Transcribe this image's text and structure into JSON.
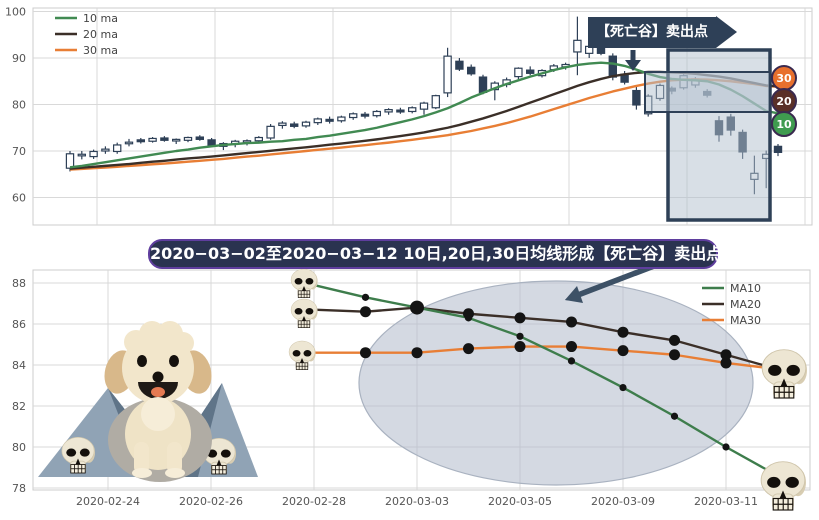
{
  "banner": {
    "text": "2020−03−02至2020−03−12 10日,20日,30日均线形成【死亡谷】卖出点"
  },
  "style": {
    "candle_color": "#2e4057",
    "ma10_color": "#418a52",
    "ma20_color": "#3b2f28",
    "ma30_color": "#e87e35",
    "grid_color": "#d9d9d9",
    "tick_color": "#555555",
    "box_fill": "rgba(178,191,205,0.5)",
    "box_stroke": "#2e4057",
    "ellipse_fill": "rgba(176,186,202,0.55)",
    "ellipse_stroke": "#a9b2c0",
    "arrow_color": "#3d5166",
    "badge_border": "#3a2a4f",
    "badge_colors": {
      "30": "#e8702d",
      "20": "#5a3028",
      "10": "#3f9b4f"
    },
    "mountain_light": "#90a3b5",
    "mountain_dark": "#5f7488",
    "skull_bone": "#ede6d3",
    "dog_cream": "#f2e6cb",
    "dog_tan": "#d8b88a"
  },
  "chart_data": [
    {
      "type": "candlestick",
      "title": "",
      "legend": [
        {
          "label": "10 ma",
          "color": "#418a52"
        },
        {
          "label": "20 ma",
          "color": "#3b2f28"
        },
        {
          "label": "30 ma",
          "color": "#e87e35"
        }
      ],
      "y_ticks": [
        100,
        90,
        80,
        70,
        60
      ],
      "ylim": [
        54,
        101
      ],
      "annotation": "【死亡谷】卖出点",
      "badges": [
        {
          "label": "30",
          "color": "#e8702d"
        },
        {
          "label": "20",
          "color": "#5a3028"
        },
        {
          "label": "10",
          "color": "#3f9b4f"
        }
      ],
      "ohlc": [
        [
          66.3,
          70.0,
          65.6,
          69.4
        ],
        [
          69.0,
          70.0,
          68.2,
          69.3
        ],
        [
          68.8,
          70.3,
          68.3,
          69.9
        ],
        [
          70.0,
          71.0,
          69.4,
          70.4
        ],
        [
          69.9,
          71.8,
          69.4,
          71.3
        ],
        [
          71.6,
          72.6,
          71.0,
          71.9
        ],
        [
          72.4,
          72.8,
          71.6,
          72.0
        ],
        [
          72.1,
          73.0,
          71.8,
          72.7
        ],
        [
          72.8,
          73.2,
          72.0,
          72.3
        ],
        [
          72.2,
          72.7,
          71.5,
          72.5
        ],
        [
          72.3,
          73.1,
          71.9,
          72.9
        ],
        [
          73.0,
          73.4,
          72.2,
          72.5
        ],
        [
          72.4,
          72.8,
          70.9,
          71.2
        ],
        [
          71.0,
          71.9,
          70.2,
          71.6
        ],
        [
          71.5,
          72.4,
          70.8,
          72.1
        ],
        [
          72.0,
          72.5,
          71.2,
          72.2
        ],
        [
          72.2,
          73.2,
          71.8,
          72.9
        ],
        [
          72.8,
          75.8,
          72.4,
          75.3
        ],
        [
          75.5,
          76.4,
          74.8,
          76.0
        ],
        [
          75.8,
          76.3,
          74.9,
          75.3
        ],
        [
          75.4,
          76.5,
          75.0,
          76.2
        ],
        [
          76.1,
          77.2,
          75.6,
          76.9
        ],
        [
          76.8,
          77.4,
          75.9,
          76.4
        ],
        [
          76.5,
          77.6,
          76.1,
          77.3
        ],
        [
          77.2,
          78.3,
          76.7,
          78.0
        ],
        [
          77.9,
          78.4,
          77.0,
          77.5
        ],
        [
          77.6,
          78.8,
          77.2,
          78.5
        ],
        [
          78.4,
          79.2,
          77.8,
          78.9
        ],
        [
          78.8,
          79.3,
          78.0,
          78.4
        ],
        [
          78.5,
          79.6,
          78.1,
          79.3
        ],
        [
          79.0,
          80.6,
          77.8,
          80.3
        ],
        [
          79.3,
          82.1,
          79.0,
          81.9
        ],
        [
          82.5,
          92.2,
          81.6,
          90.4
        ],
        [
          89.3,
          90.0,
          87.2,
          87.6
        ],
        [
          88.0,
          88.6,
          86.2,
          86.6
        ],
        [
          85.9,
          86.4,
          82.2,
          82.6
        ],
        [
          83.2,
          85.0,
          80.9,
          84.6
        ],
        [
          84.3,
          85.8,
          83.7,
          85.3
        ],
        [
          86.0,
          88.0,
          85.4,
          87.8
        ],
        [
          87.4,
          88.2,
          86.3,
          86.7
        ],
        [
          86.2,
          87.6,
          85.8,
          87.3
        ],
        [
          87.5,
          88.7,
          87.0,
          88.3
        ],
        [
          88.1,
          89.0,
          87.5,
          88.6
        ],
        [
          91.3,
          98.9,
          86.3,
          93.8
        ],
        [
          91.0,
          93.5,
          90.0,
          92.5
        ],
        [
          92.4,
          92.9,
          90.6,
          91.0
        ],
        [
          90.4,
          91.0,
          85.2,
          85.9
        ],
        [
          86.5,
          87.2,
          84.3,
          84.8
        ],
        [
          83.0,
          84.0,
          78.9,
          79.9
        ],
        [
          78.0,
          82.2,
          77.4,
          81.8
        ],
        [
          81.3,
          84.5,
          80.8,
          84.1
        ],
        [
          83.5,
          83.9,
          82.2,
          82.9
        ],
        [
          83.6,
          86.5,
          83.2,
          86.2
        ],
        [
          84.2,
          85.9,
          83.6,
          85.5
        ],
        [
          82.8,
          83.3,
          81.5,
          82.0
        ],
        [
          76.5,
          77.5,
          72.0,
          73.5
        ],
        [
          77.3,
          78.0,
          73.3,
          74.5
        ],
        [
          74.0,
          74.6,
          68.3,
          69.8
        ],
        [
          63.9,
          69.0,
          60.7,
          65.2
        ],
        [
          68.4,
          70.1,
          62.0,
          69.3
        ],
        [
          71.0,
          71.5,
          68.9,
          69.7
        ]
      ],
      "ma10": [
        66.5,
        66.8,
        67.2,
        67.6,
        68.0,
        68.4,
        68.8,
        69.2,
        69.6,
        70.0,
        70.3,
        70.7,
        71.0,
        71.3,
        71.5,
        71.7,
        71.8,
        72.0,
        72.1,
        72.4,
        72.6,
        73.0,
        73.3,
        73.7,
        74.1,
        74.5,
        75.0,
        75.6,
        76.2,
        76.8,
        77.5,
        78.3,
        79.2,
        80.3,
        81.5,
        82.5,
        83.5,
        84.4,
        85.2,
        86.0,
        86.7,
        87.4,
        88.0,
        88.5,
        88.8,
        89.0,
        88.8,
        88.3,
        87.5,
        86.6,
        85.9,
        85.5,
        85.3,
        85.2,
        85.0,
        84.3,
        83.2,
        81.8,
        80.2,
        78.6,
        78.1
      ],
      "ma20": [
        66.2,
        66.4,
        66.6,
        66.8,
        67.0,
        67.2,
        67.45,
        67.7,
        67.9,
        68.15,
        68.4,
        68.6,
        68.8,
        69.05,
        69.3,
        69.55,
        69.8,
        70.05,
        70.3,
        70.55,
        70.8,
        71.05,
        71.35,
        71.6,
        71.9,
        72.2,
        72.5,
        72.85,
        73.2,
        73.6,
        74.0,
        74.5,
        75.0,
        75.6,
        76.3,
        77.0,
        77.8,
        78.6,
        79.5,
        80.4,
        81.3,
        82.2,
        83.1,
        84.0,
        84.8,
        85.5,
        86.1,
        86.5,
        86.8,
        87.0,
        87.0,
        86.9,
        86.8,
        86.6,
        86.3,
        86.0,
        85.6,
        85.1,
        84.6,
        84.1,
        83.9
      ],
      "ma30": [
        66.0,
        66.15,
        66.3,
        66.45,
        66.6,
        66.8,
        66.95,
        67.15,
        67.3,
        67.5,
        67.7,
        67.9,
        68.1,
        68.3,
        68.55,
        68.8,
        69.0,
        69.25,
        69.5,
        69.75,
        70.0,
        70.25,
        70.5,
        70.75,
        71.0,
        71.25,
        71.55,
        71.8,
        72.1,
        72.4,
        72.75,
        73.05,
        73.4,
        73.85,
        74.3,
        74.85,
        75.4,
        76.0,
        76.7,
        77.4,
        78.2,
        79.0,
        79.8,
        80.6,
        81.4,
        82.1,
        82.8,
        83.4,
        84.0,
        84.5,
        84.9,
        85.2,
        85.35,
        85.4,
        85.35,
        85.2,
        85.0,
        84.7,
        84.4,
        84.0,
        83.8
      ]
    },
    {
      "type": "line",
      "x": [
        "2020-02-28",
        "2020-03-02",
        "2020-03-03",
        "2020-03-04",
        "2020-03-05",
        "2020-03-06",
        "2020-03-09",
        "2020-03-10",
        "2020-03-11",
        "2020-03-12"
      ],
      "day_index": [
        4,
        5,
        6,
        7,
        8,
        9,
        10,
        11,
        12,
        13
      ],
      "series": [
        {
          "name": "MA10",
          "color": "#3e7d4c",
          "values": [
            87.9,
            87.3,
            86.8,
            86.3,
            85.4,
            84.2,
            82.9,
            81.5,
            80.0,
            78.6
          ]
        },
        {
          "name": "MA20",
          "color": "#3b2f28",
          "values": [
            86.7,
            86.6,
            86.8,
            86.5,
            86.3,
            86.1,
            85.6,
            85.2,
            84.5,
            83.8
          ]
        },
        {
          "name": "MA30",
          "color": "#e87e35",
          "values": [
            84.6,
            84.6,
            84.6,
            84.8,
            84.9,
            84.9,
            84.7,
            84.5,
            84.1,
            83.8
          ]
        }
      ],
      "x_tick_labels": [
        "2020-02-24",
        "2020-02-26",
        "2020-02-28",
        "2020-03-03",
        "2020-03-05",
        "2020-03-09",
        "2020-03-11"
      ],
      "x_tick_day_index": [
        0,
        2,
        4,
        6,
        8,
        10,
        12
      ],
      "y_ticks": [
        88,
        86,
        84,
        82,
        80,
        78
      ],
      "ylim": [
        78,
        88.6
      ],
      "legend_position": "upper right",
      "title_banner": "2020−03−02至2020−03−12 10日,20日,30日均线形成【死亡谷】卖出点"
    }
  ]
}
